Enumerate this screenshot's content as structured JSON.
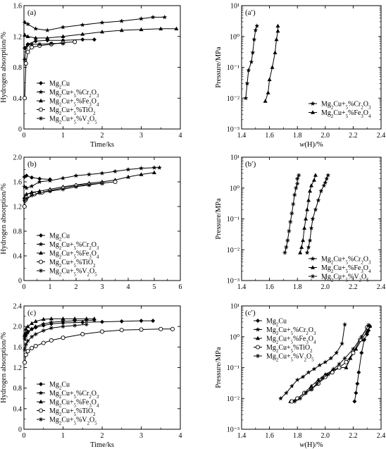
{
  "chart_data": [
    {
      "panel": "(a)",
      "type": "line",
      "xlabel": "Time/ks",
      "ylabel": "Hydrogen absorption/%",
      "xlim": [
        0,
        4
      ],
      "ylim": [
        0,
        1.6
      ],
      "xticks": [
        "0",
        "1",
        "2",
        "3",
        "4"
      ],
      "yticks": [
        "0",
        "0.4",
        "0.8",
        "1.2",
        "1.6"
      ],
      "legend": "lower-left",
      "series": [
        {
          "name": "Mg2Cu",
          "marker": "diamond",
          "x": [
            0.02,
            0.1,
            0.3,
            0.6,
            1.0,
            1.5,
            1.8
          ],
          "y": [
            1.05,
            1.1,
            1.14,
            1.15,
            1.15,
            1.16,
            1.16
          ]
        },
        {
          "name": "Mg2Cu+5%Cr2O3",
          "marker": "star",
          "x": [
            0.02,
            0.1,
            0.3,
            0.6,
            1.0,
            1.5,
            2.0,
            2.5,
            3.0,
            3.3,
            3.6
          ],
          "y": [
            1.38,
            1.36,
            1.3,
            1.28,
            1.32,
            1.35,
            1.38,
            1.4,
            1.43,
            1.45,
            1.45
          ]
        },
        {
          "name": "Mg2Cu+5%Fe3O4",
          "marker": "triangle",
          "x": [
            0.02,
            0.1,
            0.3,
            0.6,
            1.0,
            1.5,
            2.0,
            2.5,
            3.0,
            3.5,
            3.9
          ],
          "y": [
            1.22,
            1.2,
            1.18,
            1.18,
            1.2,
            1.23,
            1.26,
            1.28,
            1.29,
            1.3,
            1.3
          ]
        },
        {
          "name": "Mg2Cu+5%TiO2",
          "marker": "circle",
          "x": [
            0.02,
            0.05,
            0.1,
            0.2,
            0.4,
            0.7,
            1.0,
            1.3
          ],
          "y": [
            0.4,
            0.85,
            1.0,
            1.06,
            1.08,
            1.1,
            1.12,
            1.13
          ]
        },
        {
          "name": "Mg2Cu+5%V2O5",
          "marker": "asterisk",
          "x": [
            0.02,
            0.05,
            0.1,
            0.2,
            0.4,
            0.7,
            1.0
          ],
          "y": [
            0.9,
            1.05,
            1.09,
            1.1,
            1.1,
            1.11,
            1.11
          ]
        }
      ]
    },
    {
      "panel": "(a′)",
      "type": "line",
      "xlabel": "w(H)/%",
      "ylabel": "Pressure/MPa",
      "xscale": "linear",
      "yscale": "log",
      "xlim": [
        1.4,
        2.4
      ],
      "ylim": [
        0.001,
        10
      ],
      "xticks": [
        "1.4",
        "1.6",
        "1.8",
        "2.0",
        "2.2",
        "2.4"
      ],
      "yticks": [
        "10⁻³",
        "10⁻²",
        "10⁻¹",
        "10⁰",
        "10¹"
      ],
      "legend": "lower-right",
      "series": [
        {
          "name": "Mg2Cu+5%Cr2O3",
          "marker": "star",
          "x": [
            1.43,
            1.44,
            1.45,
            1.47,
            1.48,
            1.49,
            1.5,
            1.51
          ],
          "y": [
            0.01,
            0.03,
            0.08,
            0.15,
            0.3,
            0.8,
            1.6,
            2.2
          ]
        },
        {
          "name": "Mg2Cu+5%Fe3O4",
          "marker": "triangle",
          "x": [
            1.57,
            1.59,
            1.6,
            1.62,
            1.64,
            1.65,
            1.66,
            1.66
          ],
          "y": [
            0.008,
            0.015,
            0.04,
            0.1,
            0.3,
            0.8,
            1.5,
            2.2
          ]
        }
      ]
    },
    {
      "panel": "(b)",
      "type": "line",
      "xlabel": "",
      "ylabel": "Hydrogen absorption/%",
      "xlim": [
        0,
        6
      ],
      "ylim": [
        0,
        2.0
      ],
      "xticks": [
        "0",
        "1",
        "2",
        "3",
        "4",
        "5",
        "6"
      ],
      "yticks": [
        "0",
        "0.4",
        "0.8",
        "1.2",
        "1.6",
        "2.0"
      ],
      "legend": "lower-left",
      "series": [
        {
          "name": "Mg2Cu",
          "marker": "diamond",
          "x": [
            0.02,
            0.1,
            0.3,
            0.6,
            1.0
          ],
          "y": [
            1.68,
            1.7,
            1.67,
            1.65,
            1.64
          ]
        },
        {
          "name": "Mg2Cu+5%Cr2O3",
          "marker": "star",
          "x": [
            0.02,
            0.1,
            0.3,
            0.6,
            1.0,
            1.5,
            2.0,
            2.5,
            3.0,
            3.5,
            4.0,
            4.5,
            5.0,
            5.2
          ],
          "y": [
            1.52,
            1.5,
            1.53,
            1.6,
            1.62,
            1.66,
            1.7,
            1.72,
            1.74,
            1.77,
            1.8,
            1.82,
            1.83,
            1.83
          ]
        },
        {
          "name": "Mg2Cu+5%Fe3O4",
          "marker": "triangle",
          "x": [
            0.02,
            0.1,
            0.3,
            0.6,
            1.0,
            1.5,
            2.0,
            2.5,
            3.0,
            3.5,
            4.0,
            4.5,
            5.0
          ],
          "y": [
            1.35,
            1.4,
            1.43,
            1.45,
            1.48,
            1.52,
            1.55,
            1.58,
            1.6,
            1.63,
            1.68,
            1.72,
            1.75
          ]
        },
        {
          "name": "Mg2Cu+5%TiO2",
          "marker": "circle",
          "x": [
            0.02,
            0.05,
            0.1,
            0.2,
            0.4,
            0.7,
            1.0,
            1.5,
            2.0,
            2.5,
            3.0,
            3.5
          ],
          "y": [
            1.2,
            1.3,
            1.35,
            1.38,
            1.4,
            1.43,
            1.46,
            1.5,
            1.54,
            1.56,
            1.58,
            1.6
          ]
        },
        {
          "name": "Mg2Cu+5%V2O5",
          "marker": "asterisk",
          "x": [
            0.02,
            0.1,
            0.3,
            0.6,
            1.0,
            1.5,
            2.0,
            2.5,
            3.0
          ],
          "y": [
            1.3,
            1.33,
            1.38,
            1.42,
            1.45,
            1.48,
            1.52,
            1.55,
            1.58
          ]
        }
      ]
    },
    {
      "panel": "(b′)",
      "type": "line",
      "xlabel": "",
      "ylabel": "Pressure/MPa",
      "xscale": "linear",
      "yscale": "log",
      "xlim": [
        1.4,
        2.4
      ],
      "ylim": [
        0.001,
        10
      ],
      "xticks": [
        "1.4",
        "1.6",
        "1.8",
        "2.0",
        "2.2",
        "2.4"
      ],
      "yticks": [
        "10⁻³",
        "10⁻²",
        "10⁻¹",
        "10⁰",
        "10¹"
      ],
      "legend": "lower-right",
      "series": [
        {
          "name": "Mg2Cu+5%Cr2O3",
          "marker": "star",
          "x": [
            1.87,
            1.88,
            1.89,
            1.9,
            1.91,
            1.93,
            1.95,
            1.97,
            1.99,
            2.0,
            2.01,
            2.02
          ],
          "y": [
            0.008,
            0.012,
            0.02,
            0.05,
            0.1,
            0.2,
            0.4,
            0.8,
            1.2,
            1.5,
            2.0,
            2.6
          ]
        },
        {
          "name": "Mg2Cu+5%Fe3O4",
          "marker": "triangle",
          "x": [
            1.82,
            1.83,
            1.84,
            1.85,
            1.86,
            1.87,
            1.88,
            1.89,
            1.9,
            1.92,
            1.93
          ],
          "y": [
            0.008,
            0.012,
            0.02,
            0.05,
            0.1,
            0.2,
            0.4,
            0.8,
            1.2,
            1.8,
            2.6
          ]
        },
        {
          "name": "Mg2Cu+5%V2O5",
          "marker": "asterisk",
          "x": [
            1.71,
            1.72,
            1.73,
            1.74,
            1.75,
            1.76,
            1.77,
            1.78,
            1.79,
            1.8,
            1.8,
            1.81
          ],
          "y": [
            0.008,
            0.012,
            0.02,
            0.04,
            0.08,
            0.15,
            0.3,
            0.6,
            1.0,
            1.4,
            2.0,
            2.6
          ]
        }
      ]
    },
    {
      "panel": "(c)",
      "type": "line",
      "xlabel": "Time/ks",
      "ylabel": "Hydrogen absorption/%",
      "xlim": [
        0,
        4
      ],
      "ylim": [
        0,
        2.4
      ],
      "xticks": [
        "0",
        "1",
        "2",
        "3",
        "4"
      ],
      "yticks": [
        "0",
        "0.4",
        "0.8",
        "1.2",
        "1.6",
        "2.0",
        "2.4"
      ],
      "legend": "lower-left",
      "series": [
        {
          "name": "Mg2Cu",
          "marker": "diamond",
          "x": [
            0.02,
            0.05,
            0.1,
            0.2,
            0.3,
            0.5,
            0.7,
            1.0,
            1.5,
            2.0,
            2.5,
            3.0,
            3.3
          ],
          "y": [
            1.8,
            1.85,
            1.9,
            1.95,
            1.98,
            2.02,
            2.05,
            2.07,
            2.08,
            2.09,
            2.1,
            2.11,
            2.11
          ]
        },
        {
          "name": "Mg2Cu+5%Cr2O3",
          "marker": "star",
          "x": [
            0.02,
            0.05,
            0.1,
            0.2,
            0.3,
            0.5,
            0.7,
            1.0,
            1.3,
            1.6,
            1.8
          ],
          "y": [
            1.75,
            1.82,
            1.88,
            1.95,
            2.0,
            2.05,
            2.08,
            2.1,
            2.11,
            2.12,
            2.12
          ]
        },
        {
          "name": "Mg2Cu+5%Fe3O4",
          "marker": "triangle",
          "x": [
            0.02,
            0.05,
            0.1,
            0.2,
            0.3,
            0.5,
            0.7,
            1.0,
            1.3,
            1.6,
            1.8
          ],
          "y": [
            1.85,
            1.95,
            2.0,
            2.06,
            2.1,
            2.14,
            2.15,
            2.15,
            2.15,
            2.15,
            2.15
          ]
        },
        {
          "name": "Mg2Cu+5%TiO2",
          "marker": "circle",
          "x": [
            0.02,
            0.05,
            0.1,
            0.2,
            0.3,
            0.5,
            0.7,
            1.0,
            1.5,
            2.0,
            2.5,
            3.0,
            3.5,
            3.8
          ],
          "y": [
            1.3,
            1.45,
            1.52,
            1.58,
            1.62,
            1.68,
            1.73,
            1.78,
            1.85,
            1.9,
            1.93,
            1.94,
            1.95,
            1.95
          ]
        },
        {
          "name": "Mg2Cu+5%V2O5",
          "marker": "asterisk",
          "x": [
            0.02,
            0.05,
            0.1,
            0.2,
            0.3,
            0.5,
            0.7,
            1.0,
            1.3,
            1.6
          ],
          "y": [
            1.55,
            1.65,
            1.72,
            1.8,
            1.85,
            1.92,
            1.97,
            2.0,
            2.02,
            2.04
          ]
        }
      ]
    },
    {
      "panel": "(c′)",
      "type": "line",
      "xlabel": "w(H)/%",
      "ylabel": "Pressure/MPa",
      "xscale": "linear",
      "yscale": "log",
      "xlim": [
        1.4,
        2.4
      ],
      "ylim": [
        0.001,
        10
      ],
      "xticks": [
        "1.4",
        "1.6",
        "1.8",
        "2.0",
        "2.2",
        "2.4"
      ],
      "yticks": [
        "10⁻³",
        "10⁻²",
        "10⁻¹",
        "10⁰",
        "10¹"
      ],
      "legend": "top-left",
      "series": [
        {
          "name": "Mg2Cu",
          "marker": "diamond",
          "x": [
            2.21,
            2.22,
            2.23,
            2.24,
            2.26,
            2.28,
            2.3,
            2.31,
            2.32
          ],
          "y": [
            0.008,
            0.015,
            0.03,
            0.07,
            0.3,
            0.8,
            1.2,
            1.6,
            2.2
          ]
        },
        {
          "name": "Mg2Cu+5%Cr2O3",
          "marker": "star",
          "x": [
            1.68,
            1.72,
            1.76,
            1.8,
            1.84,
            1.88,
            1.92,
            1.96,
            2.0,
            2.04,
            2.08,
            2.12,
            2.14
          ],
          "y": [
            0.01,
            0.015,
            0.025,
            0.04,
            0.05,
            0.07,
            0.09,
            0.12,
            0.15,
            0.2,
            0.3,
            0.6,
            2.5
          ]
        },
        {
          "name": "Mg2Cu+5%Fe3O4",
          "marker": "triangle",
          "x": [
            1.75,
            1.8,
            1.85,
            1.9,
            1.95,
            2.0,
            2.05,
            2.1,
            2.15,
            2.18,
            2.22,
            2.26,
            2.3,
            2.32
          ],
          "y": [
            0.008,
            0.01,
            0.015,
            0.025,
            0.04,
            0.06,
            0.08,
            0.1,
            0.1,
            0.2,
            0.4,
            0.8,
            1.5,
            2.2
          ]
        },
        {
          "name": "Mg2Cu+5%TiO2",
          "marker": "circle",
          "x": [
            1.76,
            1.8,
            1.85,
            1.9,
            1.95,
            2.0,
            2.05,
            2.1,
            2.15,
            2.2,
            2.25,
            2.3
          ],
          "y": [
            0.008,
            0.01,
            0.015,
            0.02,
            0.03,
            0.05,
            0.07,
            0.1,
            0.15,
            0.3,
            0.8,
            2.0
          ]
        },
        {
          "name": "Mg2Cu+5%V2O5",
          "marker": "asterisk",
          "x": [
            1.78,
            1.82,
            1.86,
            1.9,
            1.94,
            1.98,
            2.02,
            2.06,
            2.1,
            2.14,
            2.2,
            2.26,
            2.31
          ],
          "y": [
            0.008,
            0.01,
            0.015,
            0.02,
            0.03,
            0.045,
            0.06,
            0.09,
            0.13,
            0.2,
            0.4,
            1.0,
            2.4
          ]
        }
      ]
    }
  ]
}
